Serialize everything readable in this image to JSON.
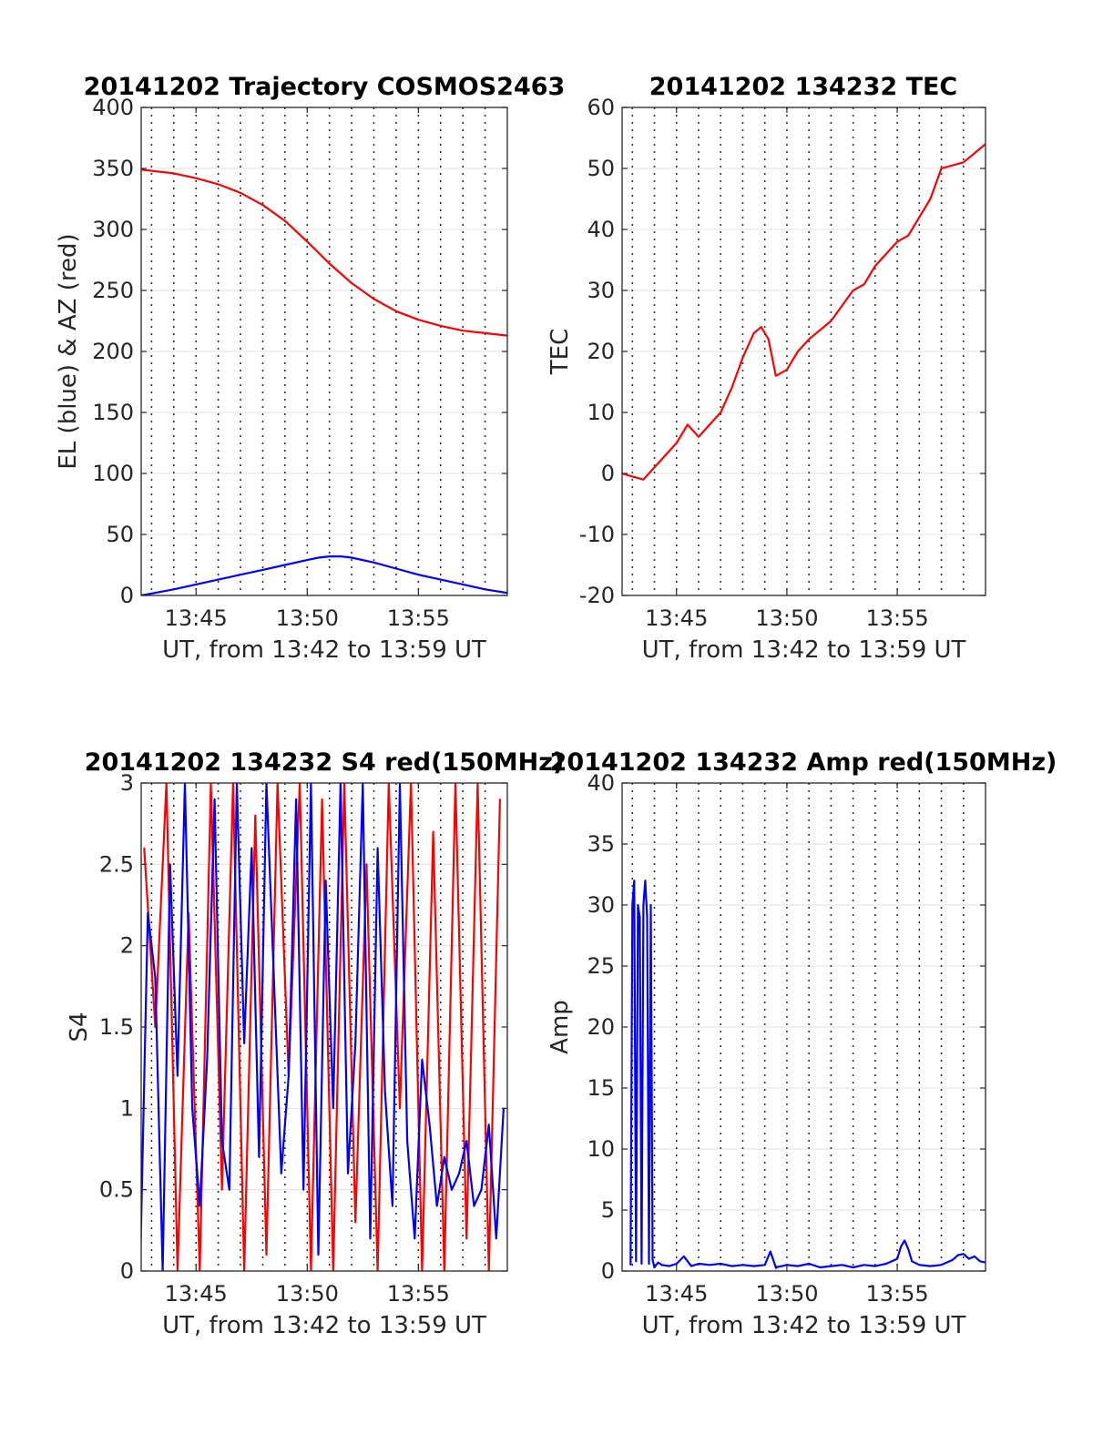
{
  "chart_data": [
    {
      "id": "traj",
      "type": "line",
      "title": "20141202 Trajectory COSMOS2463",
      "xlabel": "UT, from 13:42 to 13:59 UT",
      "ylabel": "EL (blue) & AZ (red)",
      "xlim": [
        "13:42:32",
        "13:59:00"
      ],
      "ylim": [
        0,
        400
      ],
      "yticks": [
        0,
        50,
        100,
        150,
        200,
        250,
        300,
        350,
        400
      ],
      "xticks": [
        "13:45",
        "13:50",
        "13:55"
      ],
      "grid": true,
      "series": [
        {
          "color": "#ff0000",
          "x": [
            "13:42:32",
            "13:44:00",
            "13:45:00",
            "13:46:00",
            "13:47:00",
            "13:48:00",
            "13:49:00",
            "13:50:00",
            "13:51:00",
            "13:52:00",
            "13:53:00",
            "13:54:00",
            "13:55:00",
            "13:56:00",
            "13:57:00",
            "13:58:00",
            "13:59:00"
          ],
          "y": [
            349,
            346,
            342,
            337,
            330,
            320,
            307,
            290,
            272,
            256,
            243,
            233,
            226,
            221,
            217,
            215,
            213
          ]
        },
        {
          "color": "#0000ff",
          "x": [
            "13:42:32",
            "13:44:00",
            "13:45:00",
            "13:46:00",
            "13:47:00",
            "13:48:00",
            "13:49:00",
            "13:50:00",
            "13:50:30",
            "13:51:00",
            "13:51:30",
            "13:52:00",
            "13:53:00",
            "13:54:00",
            "13:55:00",
            "13:56:00",
            "13:57:00",
            "13:58:00",
            "13:59:00"
          ],
          "y": [
            0,
            5,
            9,
            13,
            17,
            21,
            25,
            29,
            31,
            32,
            32,
            31,
            27,
            22,
            17,
            13,
            9,
            5,
            2
          ]
        }
      ]
    },
    {
      "id": "tec",
      "type": "line",
      "title": "20141202 134232 TEC",
      "xlabel": "UT, from 13:42 to 13:59 UT",
      "ylabel": "TEC",
      "xlim": [
        "13:42:32",
        "13:59:00"
      ],
      "ylim": [
        -20,
        60
      ],
      "yticks": [
        -20,
        -10,
        0,
        10,
        20,
        30,
        40,
        50,
        60
      ],
      "xticks": [
        "13:45",
        "13:50",
        "13:55"
      ],
      "grid": true,
      "series": [
        {
          "color": "#ff0000",
          "x": [
            "13:42:32",
            "13:43:00",
            "13:43:30",
            "13:44:00",
            "13:44:30",
            "13:45:00",
            "13:45:30",
            "13:46:00",
            "13:46:30",
            "13:47:00",
            "13:47:30",
            "13:48:00",
            "13:48:30",
            "13:48:50",
            "13:49:10",
            "13:49:30",
            "13:50:00",
            "13:50:30",
            "13:51:00",
            "13:52:00",
            "13:53:00",
            "13:53:30",
            "13:54:00",
            "13:55:00",
            "13:55:30",
            "13:56:00",
            "13:56:30",
            "13:57:00",
            "13:58:00",
            "13:59:00"
          ],
          "y": [
            0,
            -0.5,
            -1,
            1,
            3,
            5,
            8,
            6,
            8,
            10,
            14,
            19,
            23,
            24,
            22,
            16,
            17,
            20,
            22,
            25,
            30,
            31,
            34,
            38,
            39,
            42,
            45,
            50,
            51,
            54
          ]
        }
      ]
    },
    {
      "id": "s4",
      "type": "line",
      "title": "20141202 134232 S4 red(150MHz)",
      "xlabel": "UT, from 13:42 to 13:59 UT",
      "ylabel": "S4",
      "xlim": [
        "13:42:32",
        "13:59:00"
      ],
      "ylim": [
        0,
        3
      ],
      "yticks": [
        0,
        0.5,
        1,
        1.5,
        2,
        2.5,
        3
      ],
      "ytick_labels": [
        "0",
        "0.5",
        "1",
        "1.5",
        "2",
        "2.5",
        "3"
      ],
      "xticks": [
        "13:45",
        "13:50",
        "13:55"
      ],
      "grid": true,
      "series": [
        {
          "color": "#ff0000",
          "x": [
            "13:42:40",
            "13:43:10",
            "13:43:40",
            "13:44:10",
            "13:44:40",
            "13:45:10",
            "13:45:40",
            "13:46:10",
            "13:46:40",
            "13:47:10",
            "13:47:40",
            "13:48:10",
            "13:48:40",
            "13:49:10",
            "13:49:40",
            "13:50:10",
            "13:50:40",
            "13:51:10",
            "13:51:40",
            "13:52:10",
            "13:52:40",
            "13:53:10",
            "13:53:40",
            "13:54:10",
            "13:54:40",
            "13:55:10",
            "13:55:40",
            "13:56:10",
            "13:56:40",
            "13:57:10",
            "13:57:40",
            "13:58:10",
            "13:58:40"
          ],
          "y": [
            2.6,
            1.5,
            3.0,
            0.0,
            2.2,
            0.0,
            3.0,
            0.5,
            3.0,
            0.0,
            2.8,
            0.1,
            3.0,
            1.2,
            3.0,
            0.0,
            2.9,
            0.0,
            3.0,
            0.3,
            2.5,
            0.0,
            3.0,
            1.0,
            3.0,
            0.0,
            2.7,
            0.0,
            3.0,
            0.2,
            3.0,
            0.0,
            2.9
          ]
        },
        {
          "color": "#0000ff",
          "x": [
            "13:42:30",
            "13:42:50",
            "13:43:10",
            "13:43:30",
            "13:43:50",
            "13:44:10",
            "13:44:30",
            "13:44:50",
            "13:45:10",
            "13:45:30",
            "13:45:50",
            "13:46:10",
            "13:46:30",
            "13:46:50",
            "13:47:10",
            "13:47:30",
            "13:47:50",
            "13:48:10",
            "13:48:30",
            "13:48:50",
            "13:49:10",
            "13:49:30",
            "13:49:50",
            "13:50:10",
            "13:50:30",
            "13:50:50",
            "13:51:10",
            "13:51:30",
            "13:51:50",
            "13:52:10",
            "13:52:30",
            "13:52:50",
            "13:53:10",
            "13:53:30",
            "13:53:50",
            "13:54:10",
            "13:54:30",
            "13:54:50",
            "13:55:10",
            "13:55:30",
            "13:55:50",
            "13:56:10",
            "13:56:30",
            "13:56:50",
            "13:57:10",
            "13:57:30",
            "13:57:50",
            "13:58:10",
            "13:58:30",
            "13:58:50"
          ],
          "y": [
            0.1,
            2.2,
            1.8,
            0.0,
            2.5,
            1.2,
            3.0,
            1.0,
            0.4,
            1.3,
            2.9,
            0.8,
            0.5,
            3.0,
            1.4,
            2.6,
            0.7,
            3.0,
            1.8,
            0.6,
            1.2,
            2.9,
            0.5,
            3.0,
            0.1,
            2.4,
            1.0,
            3.0,
            0.6,
            1.4,
            3.0,
            0.2,
            2.6,
            1.1,
            0.4,
            3.0,
            0.8,
            0.2,
            1.3,
            0.9,
            0.4,
            0.7,
            0.5,
            0.6,
            0.8,
            0.4,
            0.5,
            0.9,
            0.2,
            1.0
          ]
        }
      ]
    },
    {
      "id": "amp",
      "type": "line",
      "title": "20141202 134232 Amp red(150MHz)",
      "xlabel": "UT, from 13:42 to 13:59 UT",
      "ylabel": "Amp",
      "xlim": [
        "13:42:32",
        "13:59:00"
      ],
      "ylim": [
        0,
        40
      ],
      "yticks": [
        0,
        5,
        10,
        15,
        20,
        25,
        30,
        35,
        40
      ],
      "xticks": [
        "13:45",
        "13:50",
        "13:55"
      ],
      "grid": true,
      "series": [
        {
          "color": "#ff0000",
          "x": [
            "13:49:30",
            "13:49:31"
          ],
          "y": [
            0.2,
            0.4
          ]
        },
        {
          "color": "#0000ff",
          "x": [
            "13:42:55",
            "13:43:00",
            "13:43:05",
            "13:43:10",
            "13:43:15",
            "13:43:20",
            "13:43:25",
            "13:43:30",
            "13:43:35",
            "13:43:40",
            "13:43:45",
            "13:43:50",
            "13:43:55",
            "13:44:00",
            "13:44:10",
            "13:44:20",
            "13:44:40",
            "13:45:00",
            "13:45:20",
            "13:45:40",
            "13:46:00",
            "13:46:30",
            "13:47:00",
            "13:47:30",
            "13:48:00",
            "13:48:30",
            "13:49:00",
            "13:49:15",
            "13:49:30",
            "13:50:00",
            "13:50:30",
            "13:51:00",
            "13:51:30",
            "13:52:00",
            "13:52:30",
            "13:53:00",
            "13:53:30",
            "13:54:00",
            "13:54:30",
            "13:55:00",
            "13:55:10",
            "13:55:20",
            "13:55:30",
            "13:55:40",
            "13:56:00",
            "13:56:30",
            "13:57:00",
            "13:57:30",
            "13:57:45",
            "13:58:00",
            "13:58:15",
            "13:58:30",
            "13:58:45",
            "13:59:00"
          ],
          "y": [
            0.5,
            30,
            32,
            0.8,
            30,
            29,
            0.6,
            30,
            32,
            29,
            0.6,
            30,
            0.9,
            0.3,
            0.7,
            0.5,
            0.4,
            0.6,
            1.2,
            0.4,
            0.6,
            0.5,
            0.6,
            0.4,
            0.5,
            0.4,
            0.5,
            1.6,
            0.3,
            0.5,
            0.4,
            0.6,
            0.3,
            0.4,
            0.5,
            0.3,
            0.5,
            0.4,
            0.6,
            1.0,
            2.0,
            2.5,
            1.8,
            0.8,
            0.5,
            0.4,
            0.5,
            0.9,
            1.3,
            1.4,
            1.0,
            1.2,
            0.8,
            0.7
          ]
        }
      ]
    }
  ]
}
